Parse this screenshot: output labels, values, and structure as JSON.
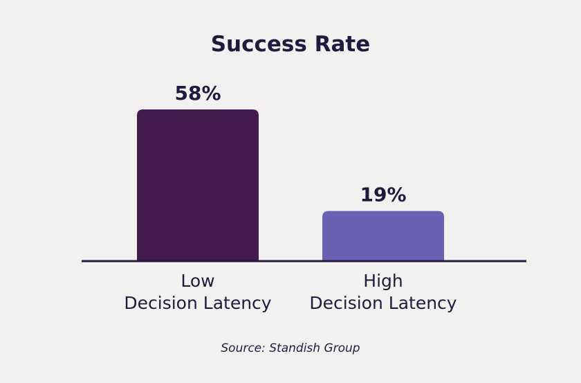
{
  "chart_data": {
    "type": "bar",
    "title": "Success Rate",
    "categories": [
      [
        "Low",
        "Decision Latency"
      ],
      [
        "High",
        "Decision Latency"
      ]
    ],
    "values": [
      58,
      19
    ],
    "value_labels": [
      "58%",
      "19%"
    ],
    "ylim": [
      0,
      58
    ],
    "grid": false,
    "colors": [
      "#461a4e",
      "#6a60b4"
    ],
    "axis_color": "#1e1b3e",
    "source": "Source: Standish Group"
  }
}
